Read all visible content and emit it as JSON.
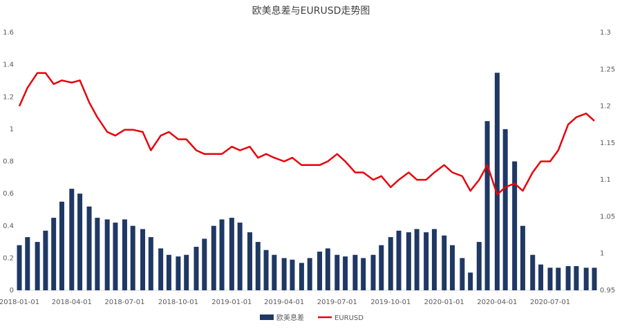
{
  "chart_data": {
    "type": "bar-line",
    "title": "欧美息差与EURUSD走势图",
    "x": [
      "2018-01-01",
      "2018-01-15",
      "2018-02-01",
      "2018-02-15",
      "2018-03-01",
      "2018-03-15",
      "2018-04-01",
      "2018-04-15",
      "2018-05-01",
      "2018-05-15",
      "2018-06-01",
      "2018-06-15",
      "2018-07-01",
      "2018-07-15",
      "2018-08-01",
      "2018-08-15",
      "2018-09-01",
      "2018-09-15",
      "2018-10-01",
      "2018-10-15",
      "2018-11-01",
      "2018-11-15",
      "2018-12-01",
      "2018-12-15",
      "2019-01-01",
      "2019-01-15",
      "2019-02-01",
      "2019-02-15",
      "2019-03-01",
      "2019-03-15",
      "2019-04-01",
      "2019-04-15",
      "2019-05-01",
      "2019-05-15",
      "2019-06-01",
      "2019-06-15",
      "2019-07-01",
      "2019-07-15",
      "2019-08-01",
      "2019-08-15",
      "2019-09-01",
      "2019-09-15",
      "2019-10-01",
      "2019-10-15",
      "2019-11-01",
      "2019-11-15",
      "2019-12-01",
      "2019-12-15",
      "2020-01-01",
      "2020-01-15",
      "2020-02-01",
      "2020-02-15",
      "2020-03-01",
      "2020-03-15",
      "2020-04-01",
      "2020-04-15",
      "2020-05-01",
      "2020-05-15",
      "2020-06-01",
      "2020-06-15",
      "2020-07-01",
      "2020-07-15",
      "2020-08-01",
      "2020-08-15",
      "2020-09-01",
      "2020-09-15"
    ],
    "series": [
      {
        "name": "欧美息差",
        "type": "bar",
        "color": "#1f3864",
        "values": [
          0.28,
          0.33,
          0.3,
          0.37,
          0.45,
          0.55,
          0.63,
          0.6,
          0.52,
          0.45,
          0.44,
          0.42,
          0.44,
          0.4,
          0.38,
          0.33,
          0.26,
          0.22,
          0.21,
          0.22,
          0.27,
          0.32,
          0.4,
          0.44,
          0.45,
          0.42,
          0.36,
          0.3,
          0.25,
          0.22,
          0.2,
          0.19,
          0.17,
          0.2,
          0.24,
          0.26,
          0.22,
          0.21,
          0.22,
          0.2,
          0.22,
          0.28,
          0.33,
          0.37,
          0.36,
          0.38,
          0.36,
          0.38,
          0.34,
          0.28,
          0.2,
          0.11,
          0.3,
          1.05,
          1.35,
          1.0,
          0.8,
          0.4,
          0.22,
          0.16,
          0.14,
          0.14,
          0.15,
          0.15,
          0.14,
          0.14
        ]
      },
      {
        "name": "EURUSD",
        "type": "line",
        "axis": "y2",
        "color": "#e8000b",
        "values": [
          1.2,
          1.225,
          1.245,
          1.245,
          1.23,
          1.235,
          1.232,
          1.235,
          1.205,
          1.185,
          1.165,
          1.16,
          1.168,
          1.168,
          1.165,
          1.14,
          1.16,
          1.165,
          1.155,
          1.155,
          1.14,
          1.135,
          1.135,
          1.135,
          1.145,
          1.14,
          1.145,
          1.13,
          1.135,
          1.13,
          1.125,
          1.13,
          1.12,
          1.12,
          1.12,
          1.125,
          1.135,
          1.125,
          1.11,
          1.11,
          1.1,
          1.105,
          1.09,
          1.1,
          1.11,
          1.1,
          1.1,
          1.11,
          1.12,
          1.11,
          1.105,
          1.085,
          1.1,
          1.12,
          1.08,
          1.09,
          1.095,
          1.085,
          1.11,
          1.125,
          1.125,
          1.14,
          1.175,
          1.185,
          1.19,
          1.18
        ]
      }
    ],
    "xlim": [
      "2018-01-01",
      "2020-09-15"
    ],
    "xticks": [
      "2018-01-01",
      "2018-04-01",
      "2018-07-01",
      "2018-10-01",
      "2019-01-01",
      "2019-04-01",
      "2019-07-01",
      "2019-10-01",
      "2020-01-01",
      "2020-04-01",
      "2020-07-01"
    ],
    "ylim": [
      0,
      1.6
    ],
    "yticks": [
      0,
      0.2,
      0.4,
      0.6,
      0.8,
      1,
      1.2,
      1.4,
      1.6
    ],
    "y2lim": [
      0.95,
      1.3
    ],
    "y2ticks": [
      0.95,
      1,
      1.05,
      1.1,
      1.15,
      1.2,
      1.25,
      1.3
    ],
    "legend": "bottom"
  }
}
